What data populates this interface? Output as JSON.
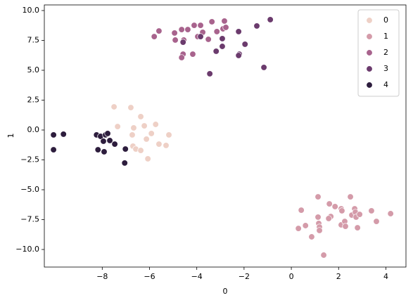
{
  "chart_data": {
    "type": "scatter",
    "xlabel": "0",
    "ylabel": "1",
    "xlim": [
      -10.45,
      4.85
    ],
    "ylim": [
      -11.47,
      10.47
    ],
    "xticks": [
      {
        "value": -8,
        "label": "−8"
      },
      {
        "value": -6,
        "label": "−6"
      },
      {
        "value": -4,
        "label": "−4"
      },
      {
        "value": -2,
        "label": "−2"
      },
      0,
      2,
      4
    ],
    "yticks": [
      {
        "value": -10,
        "label": "−10.0"
      },
      {
        "value": -7.5,
        "label": "−7.5"
      },
      {
        "value": -5,
        "label": "−5.0"
      },
      {
        "value": -2.5,
        "label": "−2.5"
      },
      {
        "value": 0,
        "label": "0.0"
      },
      {
        "value": 2.5,
        "label": "2.5"
      },
      {
        "value": 5,
        "label": "5.0"
      },
      {
        "value": 7.5,
        "label": "7.5"
      },
      {
        "value": 10,
        "label": "10.0"
      }
    ],
    "grid": false,
    "legend": "upper right",
    "series": [
      {
        "name": "0",
        "color": "#eed0c6",
        "x": [
          -7.5,
          -6.79,
          -6.37,
          -7.35,
          -6.67,
          -6.22,
          -5.74,
          -5.92,
          -6.73,
          -5.18,
          -6.13,
          -6.7,
          -6.58,
          -5.6,
          -5.3,
          -6.07,
          -6.37
        ],
        "values": [
          1.94,
          1.88,
          1.12,
          0.29,
          0.18,
          0.35,
          0.47,
          -0.29,
          -0.41,
          -0.41,
          -0.76,
          -1.35,
          -1.59,
          -1.18,
          -1.29,
          -2.41,
          -1.71
        ]
      },
      {
        "name": "1",
        "color": "#d49ba9",
        "x": [
          0.3,
          0.42,
          0.6,
          0.86,
          1.13,
          1.13,
          1.16,
          1.19,
          1.19,
          1.37,
          1.61,
          1.67,
          1.85,
          2.11,
          2.14,
          2.11,
          2.26,
          2.29,
          2.5,
          2.56,
          2.68,
          2.71,
          2.74,
          2.8,
          2.89,
          3.39,
          3.6,
          4.2,
          1.58
        ],
        "values": [
          -8.24,
          -6.71,
          -8.0,
          -8.94,
          -5.59,
          -7.29,
          -7.82,
          -8.12,
          -8.41,
          -10.47,
          -6.18,
          -7.24,
          -6.41,
          -6.59,
          -6.76,
          -7.94,
          -7.65,
          -8.06,
          -5.59,
          -7.12,
          -6.59,
          -6.88,
          -7.29,
          -8.18,
          -7.06,
          -6.76,
          -7.65,
          -7.0,
          -7.41
        ]
      },
      {
        "name": "2",
        "color": "#a8638d",
        "x": [
          -5.8,
          -5.6,
          -4.94,
          -4.91,
          -4.64,
          -4.55,
          -4.58,
          -4.17,
          -4.38,
          -4.11,
          -3.96,
          -3.84,
          -3.75,
          -3.51,
          -3.36,
          -3.15,
          -2.89,
          -2.83,
          -2.77,
          -4.64
        ],
        "values": [
          7.82,
          8.29,
          8.12,
          7.53,
          8.41,
          7.53,
          6.35,
          6.35,
          8.41,
          8.76,
          7.82,
          8.76,
          8.18,
          7.59,
          9.06,
          8.24,
          8.47,
          9.12,
          8.59,
          6.06
        ]
      },
      {
        "name": "3",
        "color": "#6b3b6d",
        "x": [
          -4.58,
          -3.84,
          -3.45,
          -3.18,
          -2.92,
          -2.92,
          -2.23,
          -2.2,
          -2.23,
          -1.96,
          -1.46,
          -1.16,
          -0.89
        ],
        "values": [
          7.35,
          7.82,
          4.71,
          6.59,
          7.65,
          7.0,
          8.24,
          6.35,
          6.24,
          7.18,
          8.71,
          5.24,
          9.24
        ]
      },
      {
        "name": "4",
        "color": "#2d1d3d",
        "x": [
          -10.06,
          -9.64,
          -10.06,
          -8.24,
          -8.07,
          -7.86,
          -7.77,
          -7.68,
          -7.95,
          -7.47,
          -8.18,
          -7.92,
          -7.02,
          -7.05
        ],
        "values": [
          -0.41,
          -0.35,
          -1.65,
          -0.41,
          -0.53,
          -0.41,
          -0.29,
          -0.88,
          -0.94,
          -1.18,
          -1.65,
          -1.82,
          -1.59,
          -2.76
        ]
      }
    ]
  }
}
